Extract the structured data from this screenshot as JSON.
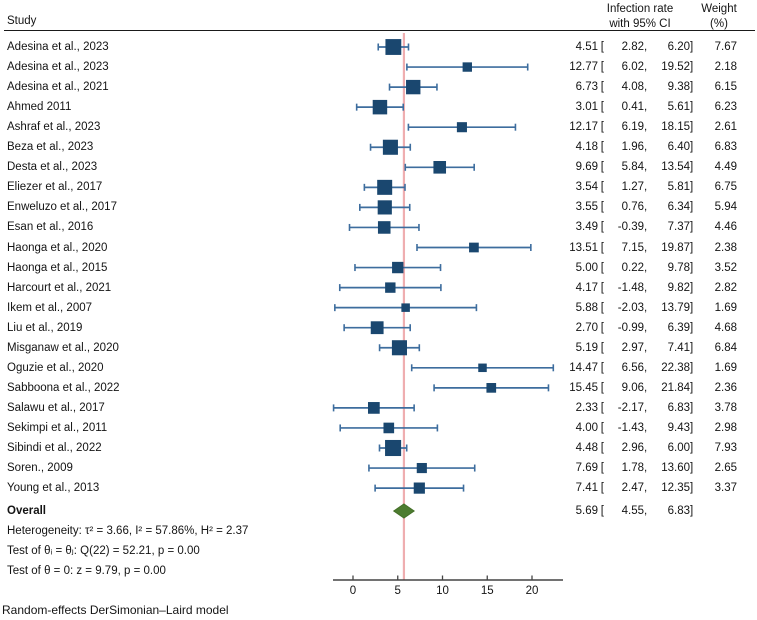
{
  "header": {
    "study": "Study",
    "effect_line1": "Infection rate",
    "effect_line2": "with 95% CI",
    "weight_line1": "Weight",
    "weight_line2": "(%)"
  },
  "format": {
    "open": "[",
    "comma": ",",
    "close": "]"
  },
  "stats": {
    "heterogeneity": "Heterogeneity: τ² = 3.66, I² = 57.86%, H² = 2.37",
    "test_group": "Test of θᵢ = θⱼ: Q(22) = 52.21, p = 0.00",
    "test_zero": "Test of θ = 0: z = 9.79, p = 0.00"
  },
  "footer": "Random-effects DerSimonian–Laird model",
  "colors": {
    "square": "#1a476f",
    "ci_line": "#3d6d9e",
    "ref_line": "#efaeb0",
    "diamond_fill": "#4d7c30",
    "diamond_stroke": "#446f28",
    "axis": "#444444",
    "text": "#141414"
  },
  "chart_data": {
    "type": "forest",
    "title": "",
    "effect_header": "Infection rate with 95% CI",
    "weight_header": "Weight (%)",
    "x_axis": {
      "ticks": [
        0,
        5,
        10,
        15,
        20
      ],
      "range_shown": [
        -2.3,
        23.5
      ]
    },
    "reference_line": 5.69,
    "legend_position": "none",
    "grid": false,
    "studies": [
      {
        "study": "Adesina et al., 2023",
        "est": 4.51,
        "lo": 2.82,
        "hi": 6.2,
        "weight": 7.67
      },
      {
        "study": "Adesina et al., 2023",
        "est": 12.77,
        "lo": 6.02,
        "hi": 19.52,
        "weight": 2.18
      },
      {
        "study": "Adesina et al., 2021",
        "est": 6.73,
        "lo": 4.08,
        "hi": 9.38,
        "weight": 6.15
      },
      {
        "study": "Ahmed 2011",
        "est": 3.01,
        "lo": 0.41,
        "hi": 5.61,
        "weight": 6.23
      },
      {
        "study": "Ashraf et al., 2023",
        "est": 12.17,
        "lo": 6.19,
        "hi": 18.15,
        "weight": 2.61
      },
      {
        "study": "Beza et al., 2023",
        "est": 4.18,
        "lo": 1.96,
        "hi": 6.4,
        "weight": 6.83
      },
      {
        "study": "Desta et al., 2023",
        "est": 9.69,
        "lo": 5.84,
        "hi": 13.54,
        "weight": 4.49
      },
      {
        "study": "Eliezer et al., 2017",
        "est": 3.54,
        "lo": 1.27,
        "hi": 5.81,
        "weight": 6.75
      },
      {
        "study": "Enweluzo et al., 2017",
        "est": 3.55,
        "lo": 0.76,
        "hi": 6.34,
        "weight": 5.94
      },
      {
        "study": "Esan et al., 2016",
        "est": 3.49,
        "lo": -0.39,
        "hi": 7.37,
        "weight": 4.46
      },
      {
        "study": "Haonga et al., 2020",
        "est": 13.51,
        "lo": 7.15,
        "hi": 19.87,
        "weight": 2.38
      },
      {
        "study": "Haonga et al., 2015",
        "est": 5.0,
        "lo": 0.22,
        "hi": 9.78,
        "weight": 3.52
      },
      {
        "study": "Harcourt et al., 2021",
        "est": 4.17,
        "lo": -1.48,
        "hi": 9.82,
        "weight": 2.82
      },
      {
        "study": "Ikem et al., 2007",
        "est": 5.88,
        "lo": -2.03,
        "hi": 13.79,
        "weight": 1.69
      },
      {
        "study": "Liu et al., 2019",
        "est": 2.7,
        "lo": -0.99,
        "hi": 6.39,
        "weight": 4.68
      },
      {
        "study": "Misganaw et al., 2020",
        "est": 5.19,
        "lo": 2.97,
        "hi": 7.41,
        "weight": 6.84
      },
      {
        "study": "Oguzie et al., 2020",
        "est": 14.47,
        "lo": 6.56,
        "hi": 22.38,
        "weight": 1.69
      },
      {
        "study": "Sabboona et al., 2022",
        "est": 15.45,
        "lo": 9.06,
        "hi": 21.84,
        "weight": 2.36
      },
      {
        "study": "Salawu et al., 2017",
        "est": 2.33,
        "lo": -2.17,
        "hi": 6.83,
        "weight": 3.78
      },
      {
        "study": "Sekimpi et al., 2011",
        "est": 4.0,
        "lo": -1.43,
        "hi": 9.43,
        "weight": 2.98
      },
      {
        "study": "Sibindi et al., 2022",
        "est": 4.48,
        "lo": 2.96,
        "hi": 6.0,
        "weight": 7.93
      },
      {
        "study": "Soren., 2009",
        "est": 7.69,
        "lo": 1.78,
        "hi": 13.6,
        "weight": 2.65
      },
      {
        "study": "Young et al., 2013",
        "est": 7.41,
        "lo": 2.47,
        "hi": 12.35,
        "weight": 3.37
      }
    ],
    "overall": {
      "label": "Overall",
      "est": 5.69,
      "lo": 4.55,
      "hi": 6.83
    }
  }
}
